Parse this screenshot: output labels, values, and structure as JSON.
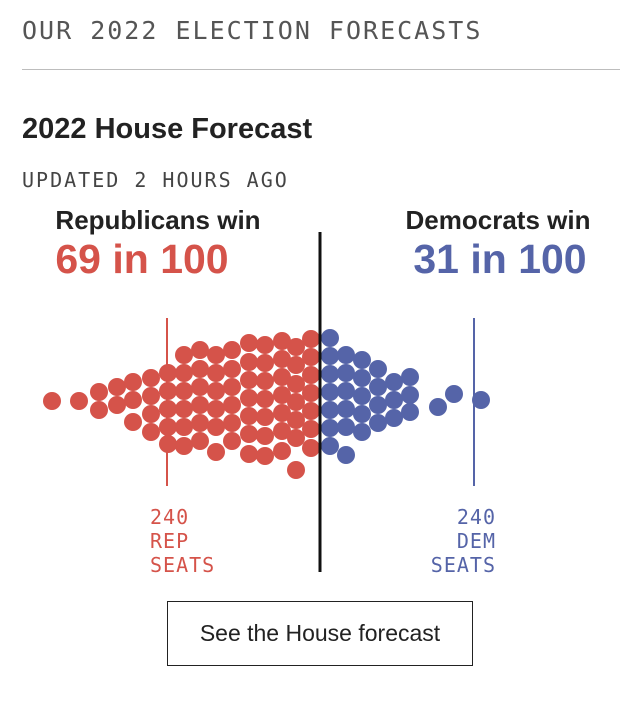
{
  "section": {
    "header": "OUR 2022 ELECTION FORECASTS"
  },
  "forecast": {
    "title": "2022 House Forecast",
    "updated": "UPDATED 2 HOURS AGO",
    "republicans": {
      "label": "Republicans win",
      "odds": "69 in 100"
    },
    "democrats": {
      "label": "Democrats win",
      "odds": "31 in 100"
    },
    "rep_seat_marker": [
      "240",
      "REP",
      "SEATS"
    ],
    "dem_seat_marker": [
      "240",
      "DEM",
      "SEATS"
    ],
    "cta_label": "See the House forecast"
  },
  "colors": {
    "republican": "#d5534a",
    "democrat": "#5564a8",
    "text": "#222222",
    "muted": "#555555"
  },
  "chart_data": {
    "type": "scatter",
    "description_of_marks": "dot distribution of simulated outcomes, one dot per outcome",
    "outcomes": {
      "republican_wins": 69,
      "democratic_wins": 31,
      "total": 100
    }
  }
}
